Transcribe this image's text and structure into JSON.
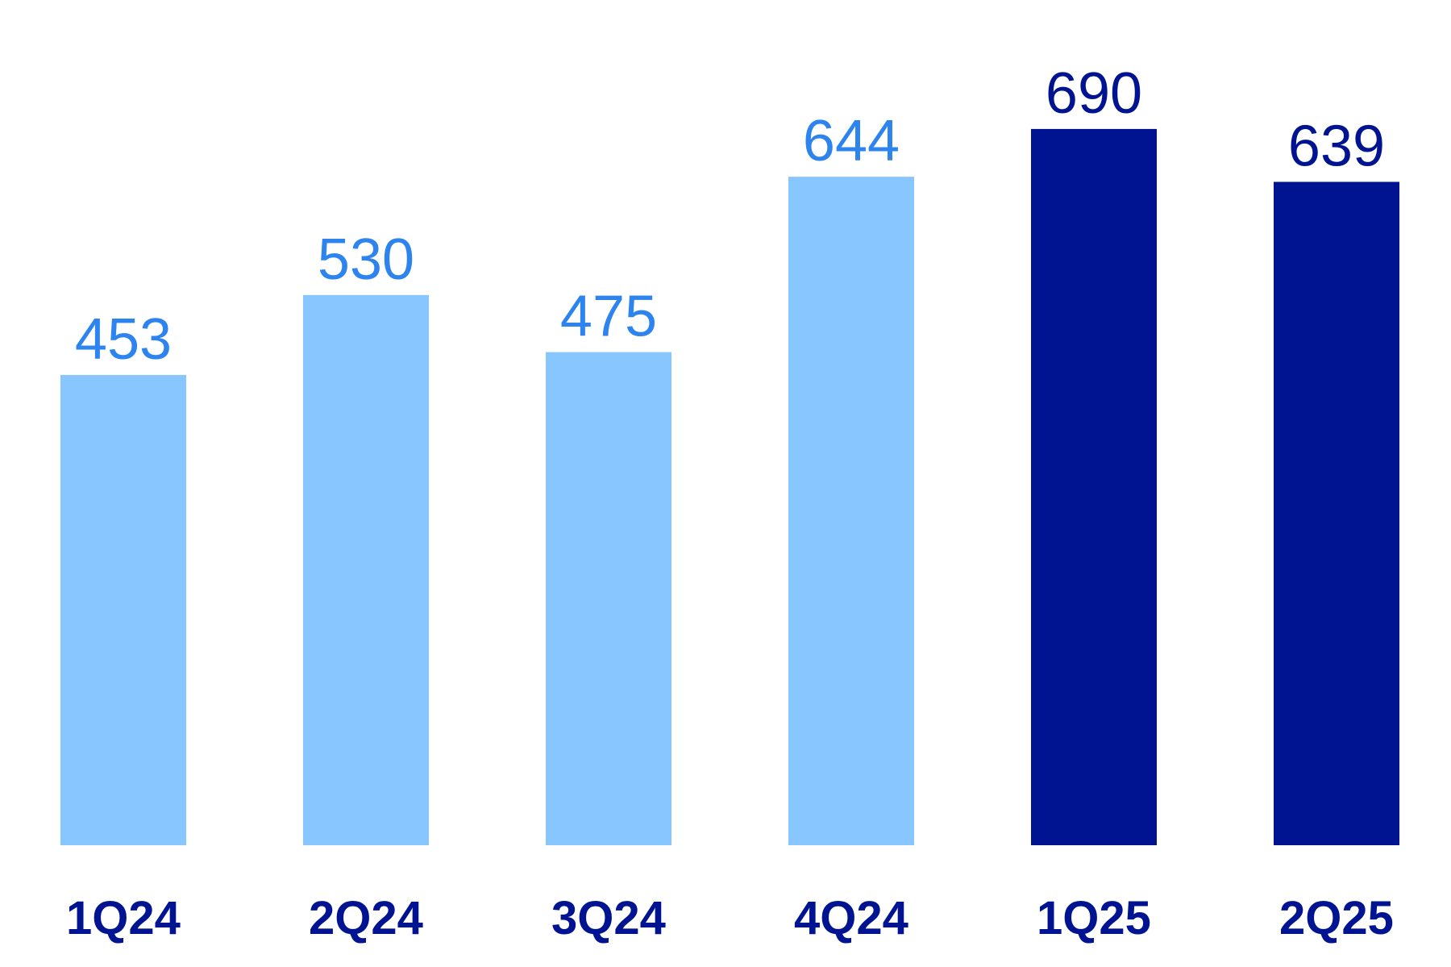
{
  "chart_data": {
    "type": "bar",
    "categories": [
      "1Q24",
      "2Q24",
      "3Q24",
      "4Q24",
      "1Q25",
      "2Q25"
    ],
    "values": [
      453,
      530,
      475,
      644,
      690,
      639
    ],
    "value_labels": [
      "453",
      "530",
      "475",
      "644",
      "690",
      "639"
    ],
    "title": "",
    "xlabel": "",
    "ylabel": "",
    "ylim": [
      0,
      700
    ],
    "grid": false,
    "legend": "none",
    "bar_colors": [
      "#88C6FF",
      "#88C6FF",
      "#88C6FF",
      "#88C6FF",
      "#001391",
      "#001391"
    ],
    "value_label_colors": [
      "#2E84EF",
      "#2E84EF",
      "#2E84EF",
      "#2E84EF",
      "#001391",
      "#001391"
    ],
    "category_label_color": "#001391"
  }
}
